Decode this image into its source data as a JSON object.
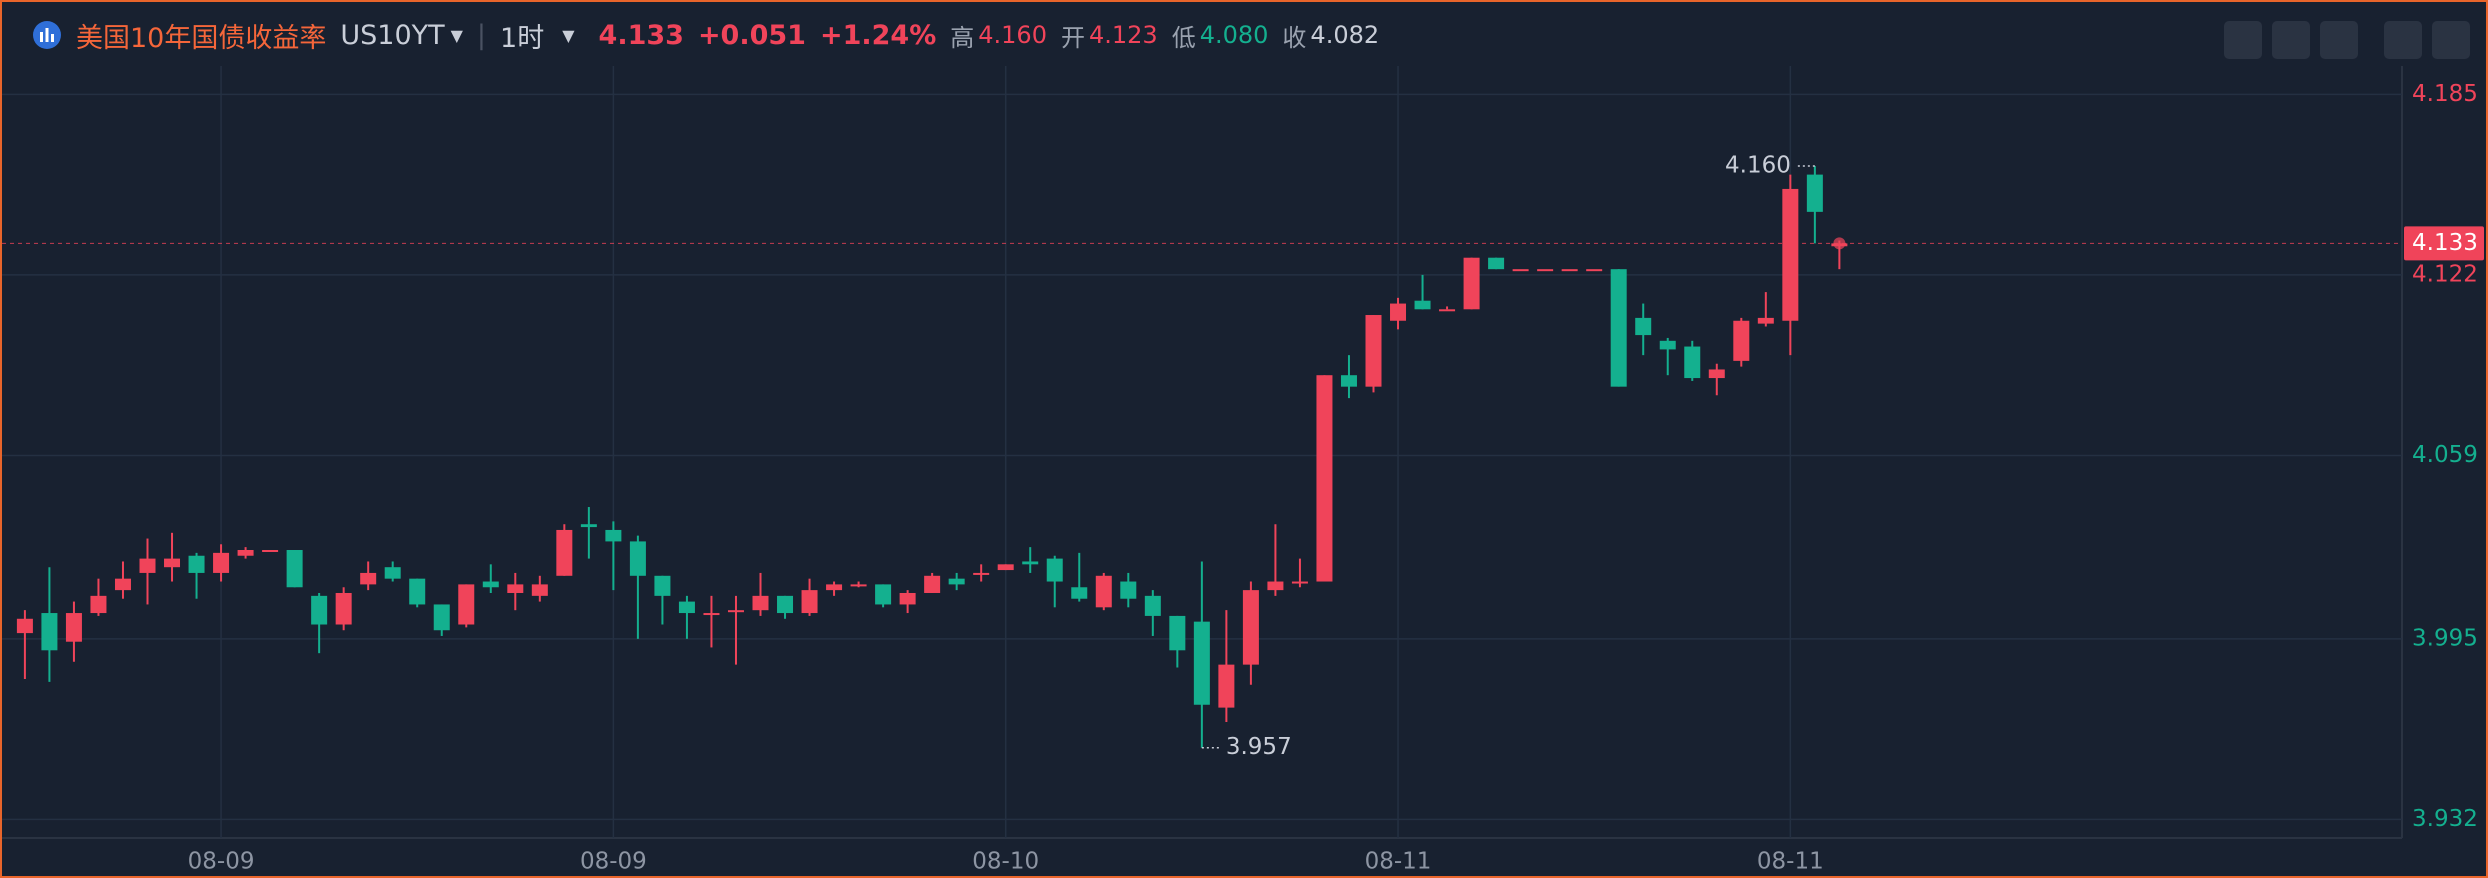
{
  "header": {
    "title": "美国10年国债收益率",
    "symbol": "US10YT",
    "interval": "1时",
    "price": "4.133",
    "change": "+0.051",
    "change_pct": "+1.24%",
    "high_label": "高",
    "high": "4.160",
    "open_label": "开",
    "open": "4.123",
    "low_label": "低",
    "low": "4.080",
    "close_label": "收",
    "close": "4.082"
  },
  "chart_data": {
    "type": "candlestick",
    "up_color": "#f0445a",
    "down_color": "#14b08f",
    "categories": [
      null,
      null,
      null,
      null,
      null,
      null,
      null,
      null,
      "08-09",
      null,
      null,
      null,
      null,
      null,
      null,
      null,
      null,
      null,
      null,
      null,
      null,
      null,
      null,
      null,
      "08-09",
      null,
      null,
      null,
      null,
      null,
      null,
      null,
      null,
      null,
      null,
      null,
      null,
      null,
      null,
      null,
      "08-10",
      null,
      null,
      null,
      null,
      null,
      null,
      null,
      null,
      null,
      null,
      null,
      null,
      null,
      null,
      null,
      "08-11",
      null,
      null,
      null,
      null,
      null,
      null,
      null,
      null,
      null,
      null,
      null,
      null,
      null,
      null,
      null,
      "08-11",
      null,
      null
    ],
    "open": [
      3.997,
      4.004,
      3.994,
      4.004,
      4.012,
      4.018,
      4.02,
      4.024,
      4.018,
      4.024,
      4.026,
      4.026,
      4.01,
      4.0,
      4.014,
      4.02,
      4.016,
      4.007,
      4.0,
      4.015,
      4.011,
      4.01,
      4.017,
      4.035,
      4.033,
      4.029,
      4.017,
      4.008,
      4.004,
      4.005,
      4.005,
      4.01,
      4.004,
      4.012,
      4.014,
      4.014,
      4.007,
      4.011,
      4.016,
      4.018,
      4.019,
      4.022,
      4.023,
      4.013,
      4.006,
      4.015,
      4.01,
      4.003,
      4.001,
      3.971,
      3.986,
      4.012,
      4.015,
      4.015,
      4.087,
      4.083,
      4.106,
      4.113,
      4.11,
      4.11,
      4.128,
      4.124,
      4.124,
      4.124,
      4.124,
      4.124,
      4.107,
      4.099,
      4.097,
      4.086,
      4.092,
      4.105,
      4.106,
      4.157,
      4.132
    ],
    "high": [
      4.005,
      4.02,
      4.008,
      4.016,
      4.022,
      4.03,
      4.032,
      4.025,
      4.028,
      4.027,
      4.026,
      4.026,
      4.011,
      4.013,
      4.022,
      4.022,
      4.016,
      4.007,
      4.014,
      4.021,
      4.018,
      4.017,
      4.035,
      4.041,
      4.036,
      4.031,
      4.017,
      4.01,
      4.01,
      4.01,
      4.018,
      4.01,
      4.016,
      4.015,
      4.015,
      4.014,
      4.012,
      4.018,
      4.018,
      4.021,
      4.021,
      4.027,
      4.024,
      4.025,
      4.018,
      4.018,
      4.012,
      4.003,
      4.022,
      4.005,
      4.015,
      4.035,
      4.023,
      4.087,
      4.094,
      4.108,
      4.114,
      4.122,
      4.111,
      4.128,
      4.128,
      4.124,
      4.124,
      4.124,
      4.124,
      4.124,
      4.112,
      4.1,
      4.099,
      4.091,
      4.107,
      4.116,
      4.157,
      4.16,
      4.134
    ],
    "low": [
      3.981,
      3.98,
      3.987,
      4.003,
      4.009,
      4.007,
      4.015,
      4.009,
      4.015,
      4.023,
      4.026,
      4.013,
      3.99,
      3.998,
      4.012,
      4.015,
      4.006,
      3.996,
      3.999,
      4.011,
      4.005,
      4.008,
      4.017,
      4.023,
      4.012,
      3.995,
      4.0,
      3.995,
      3.992,
      3.986,
      4.003,
      4.002,
      4.003,
      4.01,
      4.013,
      4.006,
      4.004,
      4.011,
      4.012,
      4.015,
      4.019,
      4.018,
      4.006,
      4.008,
      4.005,
      4.006,
      3.996,
      3.985,
      3.957,
      3.966,
      3.979,
      4.01,
      4.013,
      4.015,
      4.079,
      4.081,
      4.103,
      4.11,
      4.11,
      4.11,
      4.124,
      4.124,
      4.124,
      4.124,
      4.124,
      4.083,
      4.094,
      4.087,
      4.085,
      4.08,
      4.09,
      4.104,
      4.094,
      4.133,
      4.124
    ],
    "close": [
      4.002,
      3.991,
      4.004,
      4.01,
      4.016,
      4.023,
      4.023,
      4.018,
      4.025,
      4.026,
      4.026,
      4.013,
      4.0,
      4.011,
      4.018,
      4.016,
      4.007,
      3.998,
      4.014,
      4.013,
      4.014,
      4.014,
      4.033,
      4.034,
      4.029,
      4.017,
      4.01,
      4.004,
      4.004,
      4.005,
      4.01,
      4.004,
      4.012,
      4.014,
      4.014,
      4.007,
      4.011,
      4.017,
      4.014,
      4.018,
      4.021,
      4.021,
      4.015,
      4.009,
      4.017,
      4.009,
      4.003,
      3.991,
      3.972,
      3.986,
      4.012,
      4.015,
      4.015,
      4.087,
      4.083,
      4.108,
      4.112,
      4.11,
      4.11,
      4.128,
      4.124,
      4.124,
      4.124,
      4.124,
      4.124,
      4.083,
      4.101,
      4.096,
      4.086,
      4.089,
      4.106,
      4.107,
      4.152,
      4.144,
      4.133
    ],
    "annotations": [
      {
        "index": 73,
        "label": "4.160"
      },
      {
        "index": 48,
        "label": "3.957"
      }
    ],
    "ylim": [
      3.9255,
      4.1949
    ],
    "yticks": [
      4.185,
      4.122,
      4.059,
      3.995,
      3.932
    ],
    "grid": true
  }
}
